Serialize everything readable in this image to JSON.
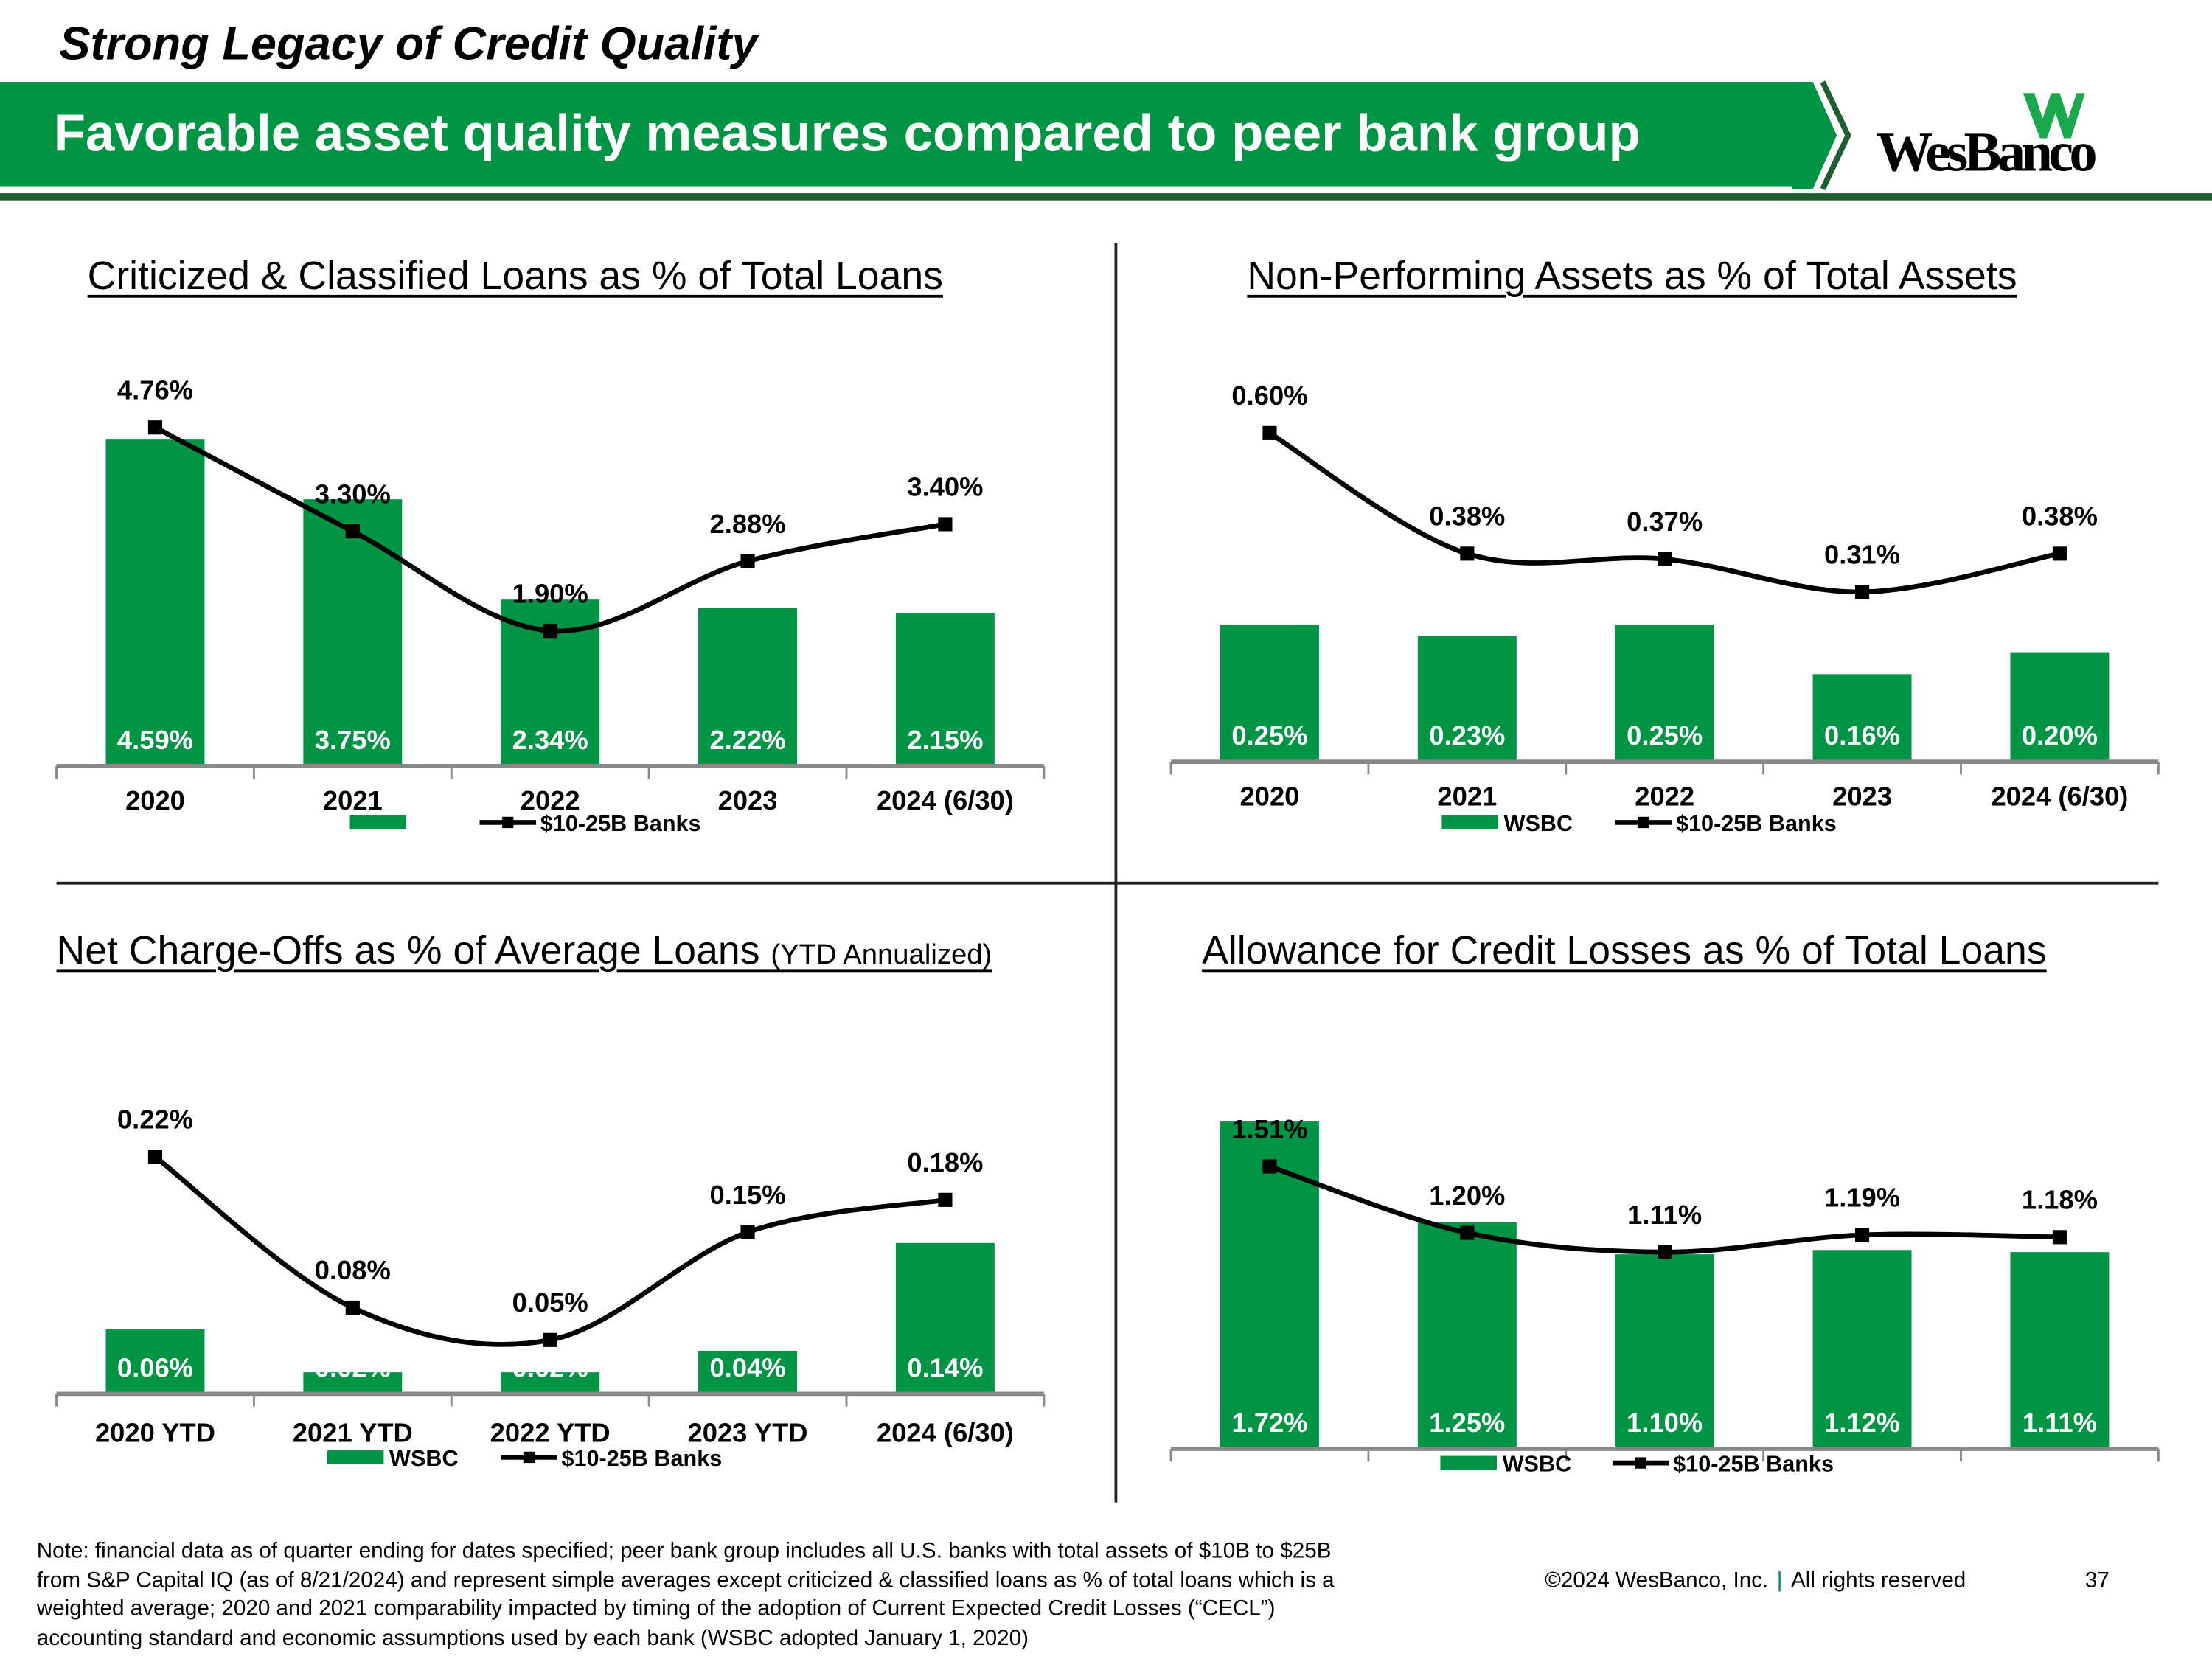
{
  "header": {
    "kicker": "Strong Legacy of Credit Quality",
    "headline": "Favorable asset quality measures compared to peer bank group",
    "logo_text": "WesBanco",
    "brand_color": "#009444",
    "dark_green": "#1e5e32"
  },
  "chart_data": [
    {
      "type": "bar",
      "title": "Criticized & Classified Loans as % of Total Loans",
      "subtitle": "",
      "categories": [
        "2020",
        "2021",
        "2022",
        "2023",
        "2024 (6/30)"
      ],
      "series": [
        {
          "name": "WSBC",
          "kind": "bar",
          "values": [
            4.59,
            3.75,
            2.34,
            2.22,
            2.15
          ],
          "labels": [
            "4.59%",
            "3.75%",
            "2.34%",
            "2.22%",
            "2.15%"
          ]
        },
        {
          "name": "$10-25B Banks",
          "kind": "line",
          "values": [
            4.76,
            3.3,
            1.9,
            2.88,
            3.4
          ],
          "labels": [
            "4.76%",
            "3.30%",
            "1.90%",
            "2.88%",
            "3.40%"
          ]
        }
      ],
      "legend": [
        "",
        "$10-25B Banks"
      ],
      "ylim": [
        0,
        5
      ],
      "legend_position": "bottom"
    },
    {
      "type": "bar",
      "title": "Non-Performing Assets as % of Total Assets",
      "subtitle": "",
      "categories": [
        "2020",
        "2021",
        "2022",
        "2023",
        "2024 (6/30)"
      ],
      "series": [
        {
          "name": "WSBC",
          "kind": "bar",
          "values": [
            0.25,
            0.23,
            0.25,
            0.16,
            0.2
          ],
          "labels": [
            "0.25%",
            "0.23%",
            "0.25%",
            "0.16%",
            "0.20%"
          ]
        },
        {
          "name": "$10-25B Banks",
          "kind": "line",
          "values": [
            0.6,
            0.38,
            0.37,
            0.31,
            0.38
          ],
          "labels": [
            "0.60%",
            "0.38%",
            "0.37%",
            "0.31%",
            "0.38%"
          ]
        }
      ],
      "legend": [
        "WSBC",
        "$10-25B Banks"
      ],
      "ylim": [
        0,
        0.65
      ],
      "legend_position": "bottom"
    },
    {
      "type": "bar",
      "title": "Net Charge-Offs as % of Average Loans",
      "subtitle": "(YTD Annualized)",
      "categories": [
        "2020 YTD",
        "2021 YTD",
        "2022 YTD",
        "2023 YTD",
        "2024 (6/30)"
      ],
      "series": [
        {
          "name": "WSBC",
          "kind": "bar",
          "values": [
            0.06,
            0.02,
            0.02,
            0.04,
            0.14
          ],
          "labels": [
            "0.06%",
            "0.02%",
            "0.02%",
            "0.04%",
            "0.14%"
          ]
        },
        {
          "name": "$10-25B Banks",
          "kind": "line",
          "values": [
            0.22,
            0.08,
            0.05,
            0.15,
            0.18
          ],
          "labels": [
            "0.22%",
            "0.08%",
            "0.05%",
            "0.15%",
            "0.18%"
          ]
        }
      ],
      "legend": [
        "WSBC",
        "$10-25B Banks"
      ],
      "ylim": [
        0,
        0.25
      ],
      "legend_position": "bottom"
    },
    {
      "type": "bar",
      "title": "Allowance for Credit Losses as % of Total Loans",
      "subtitle": "",
      "categories": [
        "",
        "",
        "",
        "",
        ""
      ],
      "series": [
        {
          "name": "WSBC",
          "kind": "bar",
          "values": [
            1.72,
            1.25,
            1.1,
            1.12,
            1.11
          ],
          "labels": [
            "1.72%",
            "1.25%",
            "1.10%",
            "1.12%",
            "1.11%"
          ]
        },
        {
          "name": "$10-25B Banks",
          "kind": "line",
          "values": [
            1.51,
            1.2,
            1.11,
            1.19,
            1.18
          ],
          "labels": [
            "1.51%",
            "1.20%",
            "1.11%",
            "1.19%",
            "1.18%"
          ]
        }
      ],
      "legend": [
        "WSBC",
        "$10-25B Banks"
      ],
      "ylim": [
        0.19,
        1.9
      ],
      "legend_position": "bottom"
    }
  ],
  "footer": {
    "note_lines": [
      "Note: financial data as of quarter ending for dates specified; peer bank group includes all U.S. banks with total assets of $10B to $25B",
      "from S&P Capital IQ (as of 8/21/2024) and represent simple averages except criticized & classified loans as % of total loans which is a",
      "weighted average; 2020 and 2021 comparability impacted by timing of the adoption of Current Expected Credit Losses (“CECL”)",
      "accounting standard and economic assumptions used by each bank (WSBC adopted January 1, 2020)"
    ],
    "copyright": "©2024 WesBanco, Inc.",
    "separator": "|",
    "rights": "All rights reserved",
    "page_number": "37"
  }
}
